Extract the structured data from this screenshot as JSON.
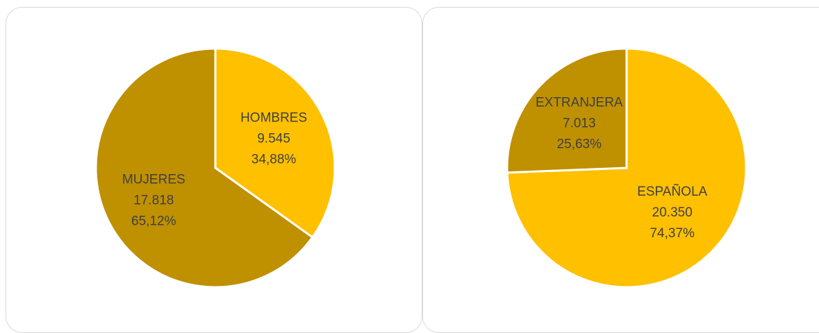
{
  "chart_data": [
    {
      "type": "pie",
      "title": "",
      "slices": [
        {
          "label": "HOMBRES",
          "count": "9.545",
          "percent_text": "34,88%",
          "value": 34.88,
          "color": "#ffc000"
        },
        {
          "label": "MUJERES",
          "count": "17.818",
          "percent_text": "65,12%",
          "value": 65.12,
          "color": "#bf9000"
        }
      ],
      "start_angle_deg": 0,
      "direction": "clockwise",
      "legend": "none"
    },
    {
      "type": "pie",
      "title": "",
      "slices": [
        {
          "label": "ESPAÑOLA",
          "count": "20.350",
          "percent_text": "74,37%",
          "value": 74.37,
          "color": "#ffc000"
        },
        {
          "label": "EXTRANJERA",
          "count": "7.013",
          "percent_text": "25,63%",
          "value": 25.63,
          "color": "#bf9000"
        }
      ],
      "start_angle_deg": 0,
      "direction": "clockwise",
      "legend": "none"
    }
  ]
}
